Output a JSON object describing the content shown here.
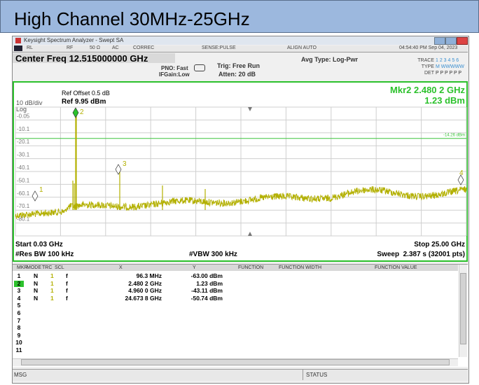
{
  "header": {
    "title": "High Channel 30MHz-25GHz"
  },
  "window": {
    "title": "Keysight Spectrum Analyzer - Swept SA"
  },
  "status_row": [
    "RL",
    "RF",
    "50 Ω",
    "AC",
    "CORREC",
    "SENSE:PULSE",
    "ALIGN AUTO",
    "04:54:40 PM Sep 04, 2023"
  ],
  "settings": {
    "center_freq": "Center Freq 12.515000000 GHz",
    "pno": "PNO: Fast",
    "ifgain": "IFGain:Low",
    "trig": "Trig: Free Run",
    "atten": "Atten: 20 dB",
    "avg_type": "Avg Type: Log-Pwr"
  },
  "trace_info": {
    "trace_label": "TRACE",
    "trace": "1 2 3 4 5 6",
    "type_label": "TYPE",
    "type": "M WWWWW",
    "det_label": "DET",
    "det": "P P P P P P"
  },
  "plot": {
    "ref_offset": "Ref Offset 0.5 dB",
    "ref_level": "Ref 9.95 dBm",
    "scale": "10 dB/div",
    "scale_type": "Log",
    "marker_readout_freq": "Mkr2 2.480 2 GHz",
    "marker_readout_level": "1.23 dBm",
    "y_labels": [
      "-0.05",
      "-10.1",
      "-20.1",
      "-30.1",
      "-40.1",
      "-50.1",
      "-60.1",
      "-70.1",
      "-80.1"
    ],
    "display_line": "-14.26 dBm",
    "markers": [
      "1",
      "2",
      "3",
      "4"
    ],
    "start": "Start 0.03 GHz",
    "stop": "Stop 25.00 GHz",
    "res_bw": "#Res BW 100 kHz",
    "vbw": "#VBW 300 kHz",
    "sweep": "Sweep  2.387 s (32001 pts)"
  },
  "marker_table": {
    "columns": [
      "MKR",
      "MODE",
      "TRC",
      "SCL",
      "X",
      "Y",
      "FUNCTION",
      "FUNCTION WIDTH",
      "FUNCTION VALUE"
    ],
    "rows": [
      [
        "1",
        "N",
        "1",
        "f",
        "96.3 MHz",
        "-63.00 dBm"
      ],
      [
        "2",
        "N",
        "1",
        "f",
        "2.480 2 GHz",
        "1.23 dBm"
      ],
      [
        "3",
        "N",
        "1",
        "f",
        "4.960 0 GHz",
        "-43.11 dBm"
      ],
      [
        "4",
        "N",
        "1",
        "f",
        "24.673 8 GHz",
        "-50.74 dBm"
      ],
      [
        "5"
      ],
      [
        "6"
      ],
      [
        "7"
      ],
      [
        "8"
      ],
      [
        "9"
      ],
      [
        "10"
      ],
      [
        "11"
      ]
    ]
  },
  "status_bar": {
    "msg": "MSG",
    "status": "STATUS"
  }
}
